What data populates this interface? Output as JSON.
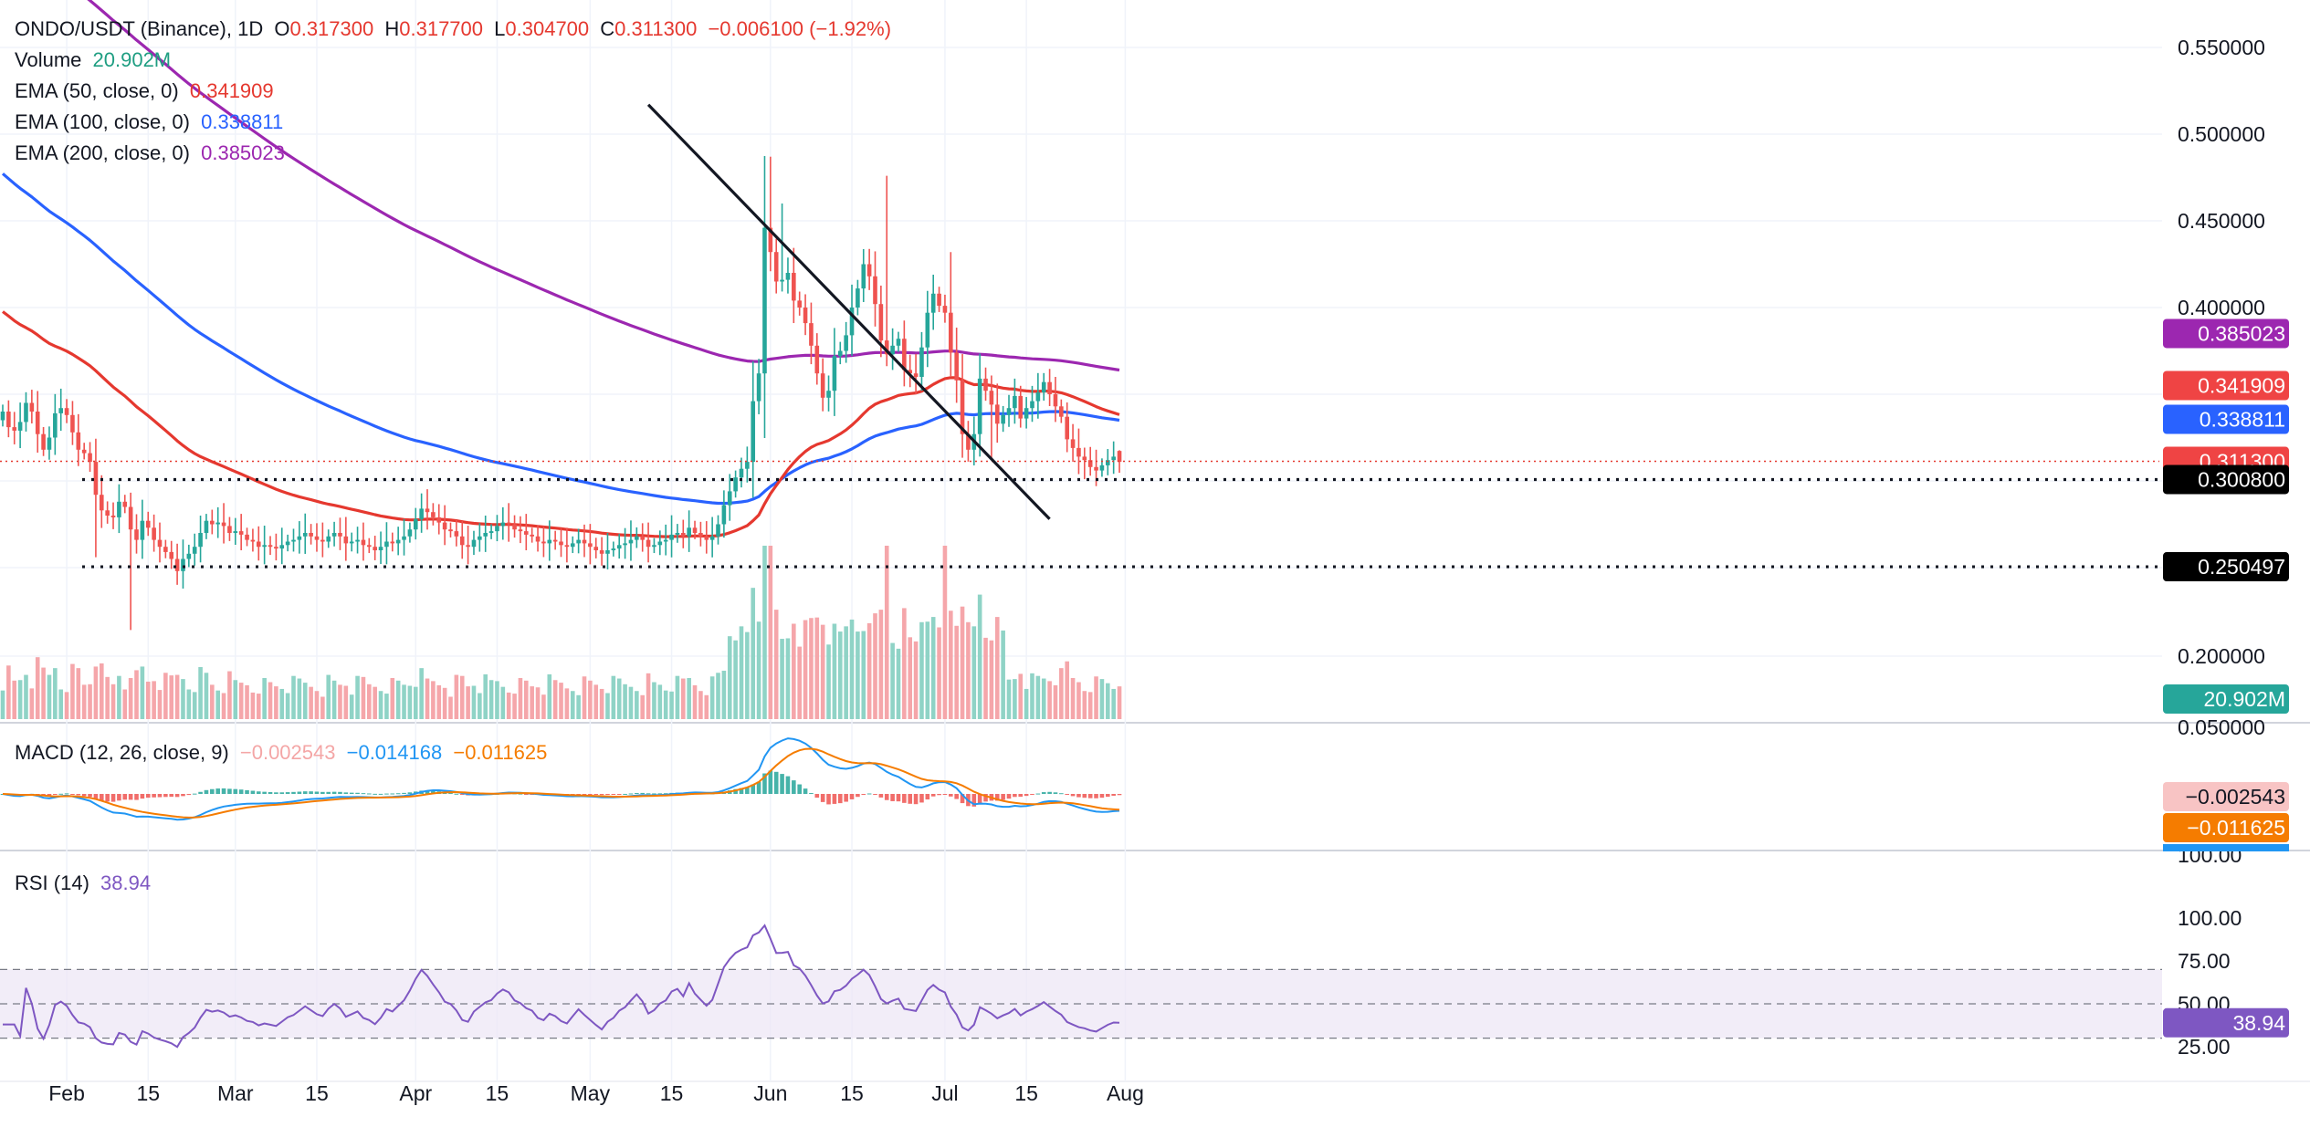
{
  "symbol": {
    "title": "ONDO/USDT (Binance), 1D",
    "open_label": "O",
    "open": "0.317300",
    "high_label": "H",
    "high": "0.317700",
    "low_label": "L",
    "low": "0.304700",
    "close_label": "C",
    "close": "0.311300",
    "change": "−0.006100 (−1.92%)"
  },
  "indicators": {
    "volume_label": "Volume",
    "volume_value": "20.902M",
    "ema50_label": "EMA (50, close, 0)",
    "ema50_value": "0.341909",
    "ema100_label": "EMA (100, close, 0)",
    "ema100_value": "0.338811",
    "ema200_label": "EMA (200, close, 0)",
    "ema200_value": "0.385023",
    "macd_label": "MACD (12, 26, close, 9)",
    "macd_hist": "−0.002543",
    "macd_line": "−0.014168",
    "macd_signal": "−0.011625",
    "rsi_label": "RSI (14)",
    "rsi_value": "38.94"
  },
  "colors": {
    "up": "#26a69a",
    "down": "#ef5350",
    "ema50": "#e5382f",
    "ema100": "#2962ff",
    "ema200": "#9c27b0",
    "macd": "#2196f3",
    "signal": "#f57c00",
    "rsi": "#7e57c2"
  },
  "chart_data": [
    {
      "type": "candlestick",
      "title": "ONDO/USDT (Binance), 1D",
      "x_start": "2024-01-21",
      "x_ticks": [
        "Feb",
        "15",
        "Mar",
        "15",
        "Apr",
        "15",
        "May",
        "15",
        "Jun",
        "15",
        "Jul",
        "15",
        "Aug"
      ],
      "y_ticks": [
        "0.550000",
        "0.500000",
        "0.450000",
        "0.400000",
        "0.200000",
        "0.050000"
      ],
      "ylim": [
        0.05,
        0.575
      ],
      "grid": true,
      "price_badges": {
        "ema200": "0.385023",
        "ema50": "0.341909",
        "ema100": "0.338811",
        "last_price": "0.311300",
        "support_1": "0.300800",
        "support_2": "0.250497",
        "volume": "20.902M"
      },
      "support_levels": [
        0.3008,
        0.250497
      ],
      "trendline": [
        {
          "date": "2024-05-11",
          "price": 0.517
        },
        {
          "date": "2024-07-19",
          "price": 0.278
        }
      ],
      "close": [
        0.34,
        0.331,
        0.329,
        0.334,
        0.345,
        0.34,
        0.327,
        0.318,
        0.325,
        0.339,
        0.342,
        0.338,
        0.328,
        0.318,
        0.316,
        0.311,
        0.292,
        0.283,
        0.28,
        0.279,
        0.288,
        0.285,
        0.272,
        0.266,
        0.277,
        0.273,
        0.266,
        0.262,
        0.259,
        0.255,
        0.248,
        0.255,
        0.258,
        0.262,
        0.27,
        0.277,
        0.275,
        0.276,
        0.274,
        0.27,
        0.271,
        0.269,
        0.266,
        0.265,
        0.262,
        0.263,
        0.262,
        0.261,
        0.263,
        0.265,
        0.266,
        0.268,
        0.27,
        0.268,
        0.266,
        0.265,
        0.268,
        0.27,
        0.268,
        0.264,
        0.265,
        0.266,
        0.263,
        0.262,
        0.26,
        0.262,
        0.265,
        0.264,
        0.266,
        0.268,
        0.272,
        0.278,
        0.284,
        0.282,
        0.279,
        0.276,
        0.272,
        0.271,
        0.268,
        0.263,
        0.262,
        0.266,
        0.268,
        0.27,
        0.271,
        0.274,
        0.276,
        0.275,
        0.272,
        0.271,
        0.269,
        0.268,
        0.265,
        0.264,
        0.266,
        0.265,
        0.263,
        0.262,
        0.264,
        0.266,
        0.264,
        0.262,
        0.26,
        0.258,
        0.26,
        0.261,
        0.263,
        0.264,
        0.266,
        0.268,
        0.266,
        0.262,
        0.263,
        0.265,
        0.266,
        0.269,
        0.27,
        0.268,
        0.273,
        0.27,
        0.268,
        0.266,
        0.268,
        0.275,
        0.286,
        0.294,
        0.302,
        0.307,
        0.311,
        0.346,
        0.362,
        0.446,
        0.432,
        0.415,
        0.416,
        0.42,
        0.404,
        0.4,
        0.391,
        0.378,
        0.362,
        0.348,
        0.352,
        0.372,
        0.375,
        0.384,
        0.4,
        0.411,
        0.425,
        0.418,
        0.402,
        0.381,
        0.373,
        0.378,
        0.382,
        0.364,
        0.362,
        0.36,
        0.377,
        0.397,
        0.408,
        0.401,
        0.397,
        0.374,
        0.358,
        0.327,
        0.318,
        0.327,
        0.359,
        0.352,
        0.344,
        0.333,
        0.338,
        0.342,
        0.349,
        0.336,
        0.342,
        0.346,
        0.351,
        0.357,
        0.35,
        0.343,
        0.337,
        0.324,
        0.319,
        0.314,
        0.312,
        0.308,
        0.306,
        0.309,
        0.312,
        0.314,
        0.311
      ],
      "volume_note": "per-candle volume drawn as histogram",
      "macd": {
        "hist_last": -0.002543,
        "macd_last": -0.014168,
        "signal_last": -0.011625
      },
      "rsi": {
        "last": 38.94,
        "levels": [
          25,
          50,
          75,
          100
        ],
        "y_ticks": [
          "100.00",
          "75.00",
          "50.00",
          "25.00"
        ]
      }
    }
  ]
}
